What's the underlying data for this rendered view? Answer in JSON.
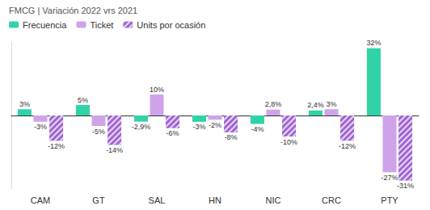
{
  "chart_data": {
    "type": "bar",
    "title": "FMCG | Variación 2022 vrs 2021",
    "categories": [
      "CAM",
      "GT",
      "SAL",
      "HN",
      "NIC",
      "CRC",
      "PTY"
    ],
    "series": [
      {
        "name": "Frecuencia",
        "color": "#2fd3a7",
        "values": [
          3,
          5,
          -2.9,
          -3,
          -4,
          2.4,
          32
        ],
        "value_labels": [
          "3%",
          "5%",
          "-2,9%",
          "-3%",
          "-4%",
          "2,4%",
          "32%"
        ]
      },
      {
        "name": "Ticket",
        "color": "#cfa3ea",
        "values": [
          -3,
          -5,
          10,
          -2,
          2.8,
          3,
          -27
        ],
        "value_labels": [
          "-3%",
          "-5%",
          "10%",
          "-2%",
          "2,8%",
          "3%",
          "-27%"
        ]
      },
      {
        "name": "Units por ocasión",
        "color": "#a064d2",
        "marker": "hatched",
        "values": [
          -12,
          -14,
          -6,
          -8,
          -10,
          -12,
          -31
        ],
        "value_labels": [
          "-12%",
          "-14%",
          "-6%",
          "-8%",
          "-10%",
          "-12%",
          "-31%"
        ]
      }
    ],
    "ylim": [
      -35,
      35
    ],
    "grid": false,
    "legend": "top-left",
    "data_labels": true,
    "tick_labels": "x"
  }
}
